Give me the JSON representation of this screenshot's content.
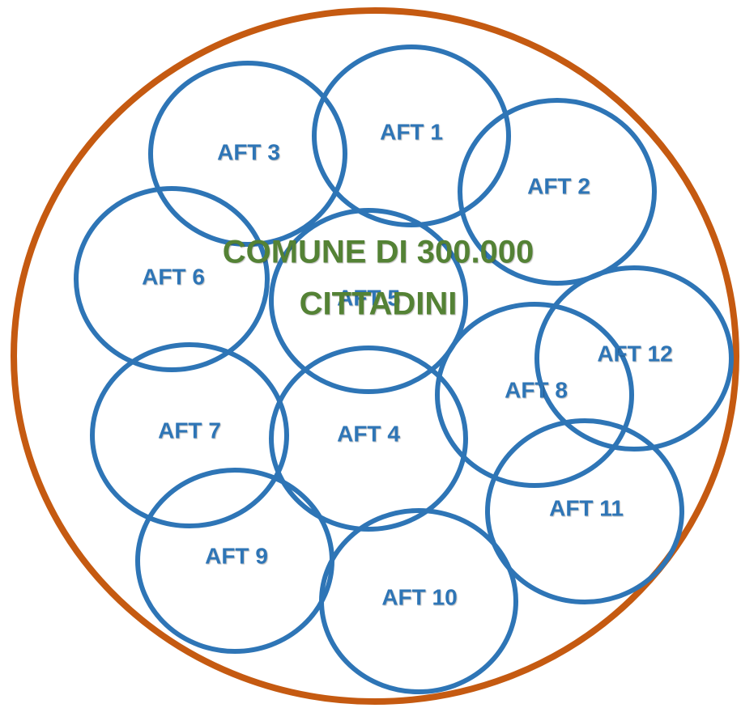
{
  "title": {
    "lines": [
      "COMUNE DI 300.000",
      "CITTADINI"
    ]
  },
  "nodes": [
    {
      "label": "AFT 1"
    },
    {
      "label": "AFT 2"
    },
    {
      "label": "AFT 3"
    },
    {
      "label": "AFT 6"
    },
    {
      "label": "AFT 5"
    },
    {
      "label": "AFT 7"
    },
    {
      "label": "AFT 4"
    },
    {
      "label": "AFT 8"
    },
    {
      "label": "AFT 12"
    },
    {
      "label": "AFT 11"
    },
    {
      "label": "AFT 9"
    },
    {
      "label": "AFT 10"
    }
  ]
}
